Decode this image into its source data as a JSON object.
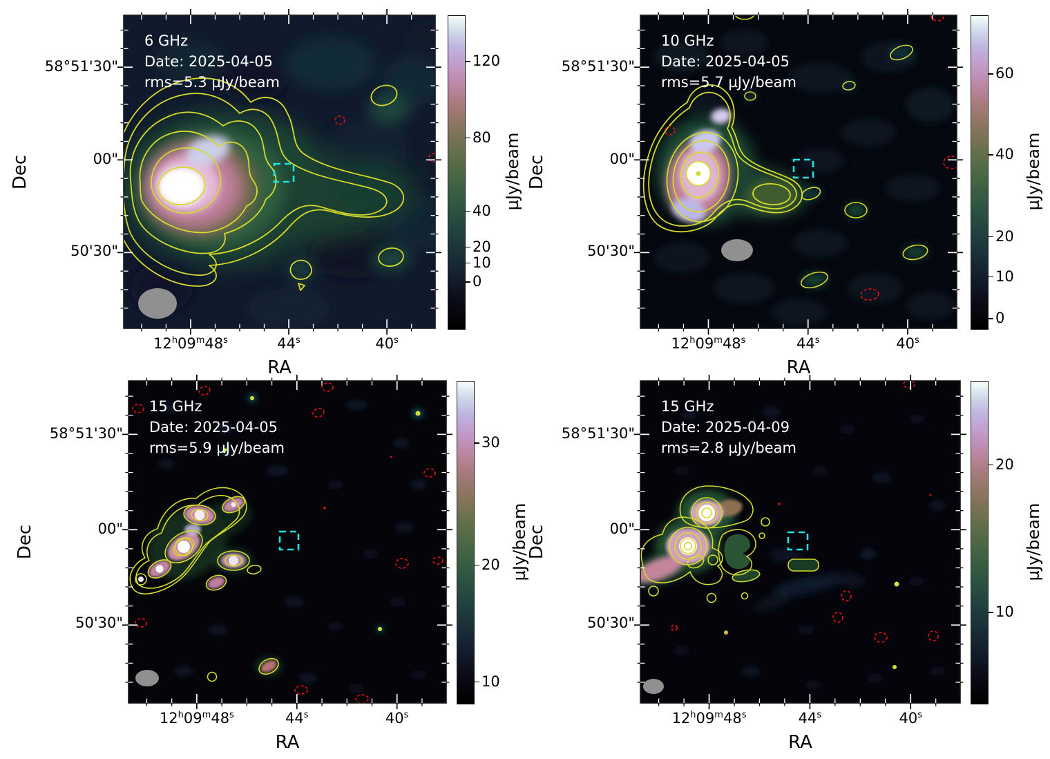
{
  "figure": {
    "background": "#ffffff"
  },
  "style": {
    "contour_positive_color": "#d6da2a",
    "contour_negative_color": "#e01014",
    "source_marker_color": "#1fe4e6",
    "beam_color": "#909090"
  },
  "axes": {
    "xlabel": "RA",
    "ylabel": "Dec",
    "x_ticks": [
      "12h09m48s",
      "44s",
      "40s"
    ],
    "y_ticks": [
      "58°51'30\"",
      "00\"",
      "50'30\""
    ]
  },
  "panels": [
    {
      "freq": "6 GHz",
      "date": "Date: 2025-04-05",
      "rms": "rms=5.3 µJy/beam",
      "colorbar": {
        "label": "µJy/beam",
        "ticks": [
          {
            "label": "120",
            "pos": 0.148
          },
          {
            "label": "80",
            "pos": 0.392
          },
          {
            "label": "40",
            "pos": 0.626
          },
          {
            "label": "20",
            "pos": 0.741
          },
          {
            "label": "10",
            "pos": 0.792
          },
          {
            "label": "0",
            "pos": 0.852
          }
        ]
      }
    },
    {
      "freq": "10 GHz",
      "date": "Date: 2025-04-05",
      "rms": "rms=5.7 µJy/beam",
      "colorbar": {
        "label": "µJy/beam",
        "ticks": [
          {
            "label": "60",
            "pos": 0.188
          },
          {
            "label": "40",
            "pos": 0.447
          },
          {
            "label": "20",
            "pos": 0.708
          },
          {
            "label": "10",
            "pos": 0.836
          },
          {
            "label": "0",
            "pos": 0.969
          }
        ]
      }
    },
    {
      "freq": "15 GHz",
      "date": "Date: 2025-04-05",
      "rms": "rms=5.9 µJy/beam",
      "colorbar": {
        "label": "µJy/beam",
        "ticks": [
          {
            "label": "30",
            "pos": 0.194
          },
          {
            "label": "20",
            "pos": 0.572
          },
          {
            "label": "10",
            "pos": 0.935
          }
        ]
      }
    },
    {
      "freq": "15 GHz",
      "date": "Date: 2025-04-09",
      "rms": "rms=2.8 µJy/beam",
      "colorbar": {
        "label": "µJy/beam",
        "ticks": [
          {
            "label": "20",
            "pos": 0.261
          },
          {
            "label": "10",
            "pos": 0.719
          }
        ]
      }
    }
  ],
  "chart_data": {
    "type": "heatmap",
    "layout": "2x2 grid of radio interferometric continuum maps of the same sky field at different frequencies/epochs",
    "shared_axes": {
      "xlabel": "RA",
      "x_tick_labels": [
        "12h09m48s",
        "44s",
        "40s"
      ],
      "ylabel": "Dec",
      "y_tick_labels": [
        "58°51'30\"",
        "00\"",
        "50'30\""
      ]
    },
    "legend": {
      "yellow_solid_contours": "positive surface brightness",
      "red_dashed_contours": "negative surface brightness",
      "cyan_dashed_box": "target position marker",
      "grey_filled_ellipse": "synthesized beam"
    },
    "panels": [
      {
        "position": "top-left",
        "frequency_GHz": 6,
        "date": "2025-04-05",
        "rms_uJy_per_beam": 5.3,
        "colorbar_label": "µJy/beam",
        "colorbar_tick_values": [
          120,
          80,
          40,
          20,
          10,
          0
        ],
        "morphology": "bright compact core east of center with extended jet-like emission trailing west"
      },
      {
        "position": "top-right",
        "frequency_GHz": 10,
        "date": "2025-04-05",
        "rms_uJy_per_beam": 5.7,
        "colorbar_label": "µJy/beam",
        "colorbar_tick_values": [
          60,
          40,
          20,
          10,
          0
        ],
        "morphology": "compact bright core with weaker extension to the west and isolated low-level contour islands"
      },
      {
        "position": "bottom-left",
        "frequency_GHz": 15,
        "date": "2025-04-05",
        "rms_uJy_per_beam": 5.9,
        "colorbar_label": "µJy/beam",
        "colorbar_tick_values": [
          30,
          20,
          10
        ],
        "morphology": "emission resolved into a chain of compact knots; mostly empty noise field"
      },
      {
        "position": "bottom-right",
        "frequency_GHz": 15,
        "date": "2025-04-09",
        "rms_uJy_per_beam": 2.8,
        "colorbar_label": "µJy/beam",
        "colorbar_tick_values": [
          20,
          10
        ],
        "morphology": "two bright compact knots with nested contours plus a faint diffuse tail"
      }
    ]
  }
}
